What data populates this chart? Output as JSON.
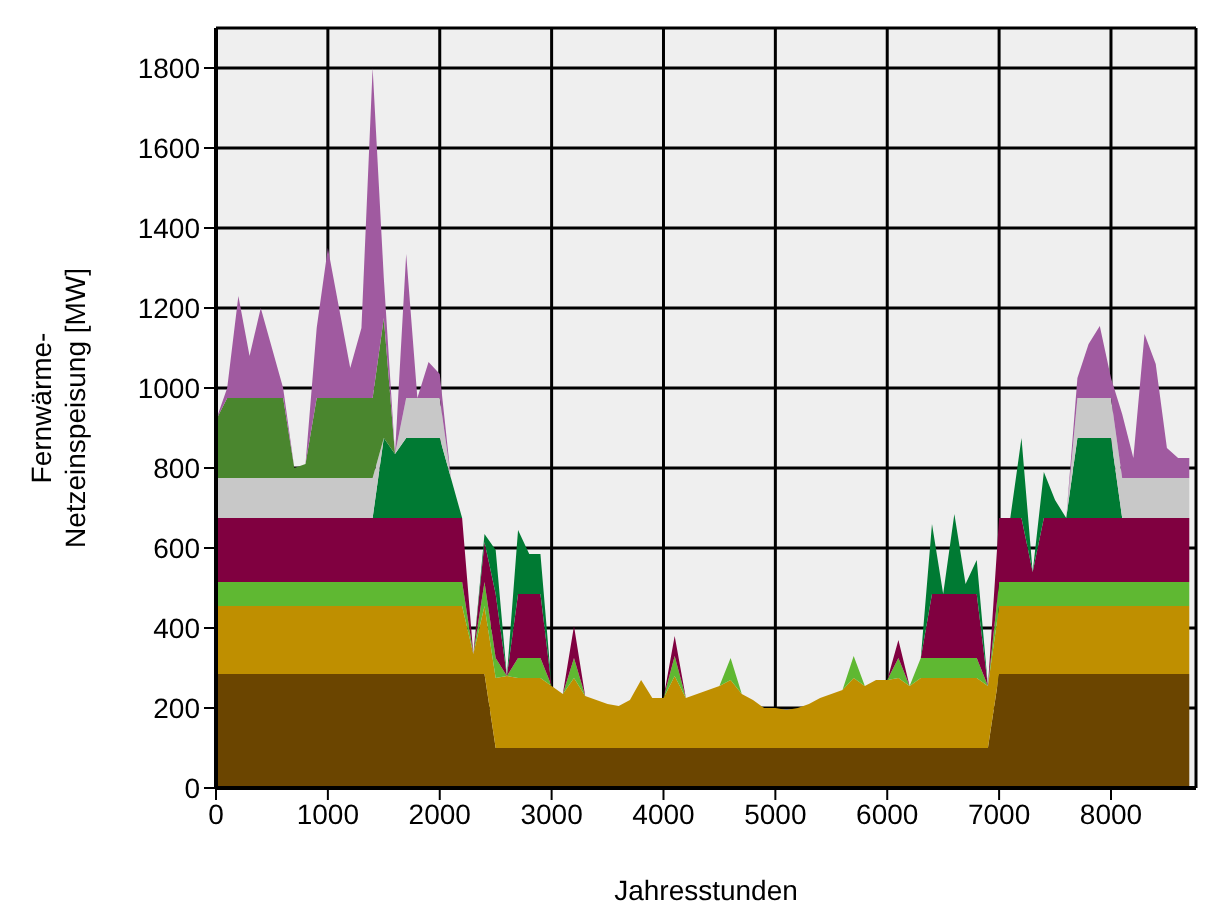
{
  "chart_data": {
    "type": "area",
    "stacked": true,
    "xlabel": "Jahresstunden",
    "ylabel": "Fernwärme-Netzeinspeisung [MW]",
    "x": [
      0,
      100,
      200,
      300,
      400,
      500,
      600,
      700,
      800,
      900,
      1000,
      1100,
      1200,
      1300,
      1400,
      1500,
      1600,
      1700,
      1800,
      1900,
      2000,
      2100,
      2200,
      2300,
      2400,
      2500,
      2600,
      2700,
      2800,
      2900,
      3000,
      3100,
      3200,
      3300,
      3400,
      3500,
      3600,
      3700,
      3800,
      3900,
      4000,
      4100,
      4200,
      4300,
      4400,
      4500,
      4600,
      4700,
      4800,
      4900,
      5000,
      5100,
      5200,
      5300,
      5400,
      5500,
      5600,
      5700,
      5800,
      5900,
      6000,
      6100,
      6200,
      6300,
      6400,
      6500,
      6600,
      6700,
      6800,
      6900,
      7000,
      7100,
      7200,
      7300,
      7400,
      7500,
      7600,
      7700,
      7800,
      7900,
      8000,
      8100,
      8200,
      8300,
      8400,
      8500,
      8600,
      8700
    ],
    "series": [
      {
        "color": "#6b4500",
        "values": [
          285,
          285,
          285,
          285,
          285,
          285,
          285,
          285,
          285,
          285,
          285,
          285,
          285,
          285,
          285,
          285,
          285,
          285,
          285,
          285,
          285,
          285,
          285,
          285,
          285,
          100,
          100,
          100,
          100,
          100,
          100,
          100,
          100,
          100,
          100,
          100,
          100,
          100,
          100,
          100,
          100,
          100,
          100,
          100,
          100,
          100,
          100,
          100,
          100,
          100,
          100,
          100,
          100,
          100,
          100,
          100,
          100,
          100,
          100,
          100,
          100,
          100,
          100,
          100,
          100,
          100,
          100,
          100,
          100,
          100,
          285,
          285,
          285,
          285,
          285,
          285,
          285,
          285,
          285,
          285,
          285,
          285,
          285,
          285,
          285,
          285,
          285,
          285
        ]
      },
      {
        "color": "#bf8f00",
        "values": [
          170,
          170,
          170,
          170,
          170,
          170,
          170,
          170,
          170,
          170,
          170,
          170,
          170,
          170,
          170,
          170,
          170,
          170,
          170,
          170,
          170,
          170,
          170,
          50,
          170,
          175,
          180,
          175,
          175,
          175,
          155,
          135,
          175,
          130,
          120,
          110,
          105,
          120,
          170,
          125,
          125,
          180,
          125,
          135,
          145,
          155,
          170,
          135,
          120,
          100,
          100,
          95,
          100,
          110,
          125,
          135,
          145,
          175,
          155,
          170,
          170,
          175,
          155,
          175,
          175,
          175,
          175,
          175,
          175,
          155,
          170,
          170,
          170,
          170,
          170,
          170,
          170,
          170,
          170,
          170,
          170,
          170,
          170,
          170,
          170,
          170,
          170,
          170
        ]
      },
      {
        "color": "#5fb832",
        "values": [
          60,
          60,
          60,
          60,
          60,
          60,
          60,
          60,
          60,
          60,
          60,
          60,
          60,
          60,
          60,
          60,
          60,
          60,
          60,
          60,
          60,
          60,
          60,
          0,
          60,
          50,
          0,
          50,
          50,
          50,
          0,
          0,
          50,
          0,
          0,
          0,
          0,
          0,
          0,
          0,
          0,
          50,
          0,
          0,
          0,
          0,
          55,
          0,
          0,
          0,
          0,
          0,
          0,
          0,
          0,
          0,
          0,
          55,
          0,
          0,
          0,
          50,
          0,
          50,
          50,
          50,
          50,
          50,
          50,
          0,
          60,
          60,
          60,
          60,
          60,
          60,
          60,
          60,
          60,
          60,
          60,
          60,
          60,
          60,
          60,
          60,
          60,
          60
        ]
      },
      {
        "color": "#800040",
        "values": [
          160,
          160,
          160,
          160,
          160,
          160,
          160,
          160,
          160,
          160,
          160,
          160,
          160,
          160,
          160,
          160,
          160,
          160,
          160,
          160,
          160,
          160,
          160,
          0,
          100,
          160,
          0,
          160,
          160,
          160,
          0,
          0,
          80,
          0,
          0,
          0,
          0,
          0,
          0,
          0,
          0,
          50,
          0,
          0,
          0,
          0,
          0,
          0,
          0,
          0,
          0,
          0,
          0,
          0,
          0,
          0,
          0,
          0,
          0,
          0,
          0,
          45,
          0,
          0,
          160,
          160,
          160,
          160,
          160,
          0,
          160,
          160,
          160,
          25,
          160,
          160,
          160,
          160,
          160,
          160,
          160,
          160,
          160,
          160,
          160,
          160,
          160,
          160
        ]
      },
      {
        "color": "#007a33",
        "values": [
          0,
          0,
          0,
          0,
          0,
          0,
          0,
          0,
          0,
          0,
          0,
          0,
          0,
          0,
          0,
          200,
          160,
          200,
          200,
          200,
          200,
          100,
          0,
          0,
          20,
          110,
          0,
          160,
          100,
          100,
          0,
          0,
          0,
          0,
          0,
          0,
          0,
          0,
          0,
          0,
          0,
          0,
          0,
          0,
          0,
          0,
          0,
          0,
          0,
          0,
          0,
          0,
          0,
          0,
          0,
          0,
          0,
          0,
          0,
          0,
          0,
          0,
          0,
          0,
          175,
          0,
          200,
          25,
          85,
          0,
          0,
          0,
          200,
          0,
          115,
          45,
          0,
          200,
          200,
          200,
          200,
          0,
          0,
          0,
          0,
          0,
          0,
          0
        ]
      },
      {
        "color": "#c8c8c8",
        "values": [
          100,
          100,
          100,
          100,
          100,
          100,
          100,
          100,
          100,
          100,
          100,
          100,
          100,
          100,
          100,
          0,
          0,
          100,
          100,
          100,
          100,
          0,
          0,
          0,
          0,
          0,
          0,
          0,
          0,
          0,
          0,
          0,
          0,
          0,
          0,
          0,
          0,
          0,
          0,
          0,
          0,
          0,
          0,
          0,
          0,
          0,
          0,
          0,
          0,
          0,
          0,
          0,
          0,
          0,
          0,
          0,
          0,
          0,
          0,
          0,
          0,
          0,
          0,
          0,
          0,
          0,
          0,
          0,
          0,
          0,
          0,
          0,
          0,
          0,
          0,
          0,
          0,
          100,
          100,
          100,
          100,
          100,
          100,
          100,
          100,
          100,
          100,
          100
        ]
      },
      {
        "color": "#4a862e",
        "values": [
          145,
          200,
          200,
          200,
          200,
          200,
          200,
          25,
          35,
          200,
          200,
          200,
          200,
          200,
          200,
          300,
          0,
          0,
          0,
          0,
          0,
          0,
          0,
          0,
          0,
          0,
          0,
          0,
          0,
          0,
          0,
          0,
          0,
          0,
          0,
          0,
          0,
          0,
          0,
          0,
          0,
          0,
          0,
          0,
          0,
          0,
          0,
          0,
          0,
          0,
          0,
          0,
          0,
          0,
          0,
          0,
          0,
          0,
          0,
          0,
          0,
          0,
          0,
          0,
          0,
          0,
          0,
          0,
          0,
          0,
          0,
          0,
          0,
          0,
          0,
          0,
          0,
          0,
          0,
          0,
          0,
          0,
          0,
          0,
          0,
          0,
          0,
          0
        ]
      },
      {
        "color": "#a05aa0",
        "values": [
          0,
          25,
          255,
          105,
          225,
          125,
          25,
          0,
          0,
          175,
          375,
          225,
          75,
          175,
          825,
          100,
          0,
          360,
          0,
          90,
          60,
          0,
          0,
          0,
          0,
          0,
          0,
          0,
          0,
          0,
          0,
          0,
          0,
          0,
          0,
          0,
          0,
          0,
          0,
          0,
          0,
          0,
          0,
          0,
          0,
          0,
          0,
          0,
          0,
          0,
          0,
          0,
          0,
          0,
          0,
          0,
          0,
          0,
          0,
          0,
          0,
          0,
          0,
          0,
          0,
          0,
          0,
          0,
          0,
          0,
          0,
          0,
          0,
          0,
          0,
          0,
          0,
          50,
          135,
          180,
          50,
          160,
          50,
          360,
          285,
          75,
          50,
          50
        ]
      }
    ],
    "xlim": [
      0,
      8760
    ],
    "xticks": [
      0,
      1000,
      2000,
      3000,
      4000,
      5000,
      6000,
      7000,
      8000
    ],
    "ylim": [
      0,
      1900
    ],
    "yticks": [
      0,
      200,
      400,
      600,
      800,
      1000,
      1200,
      1400,
      1600,
      1800
    ],
    "grid": true
  }
}
